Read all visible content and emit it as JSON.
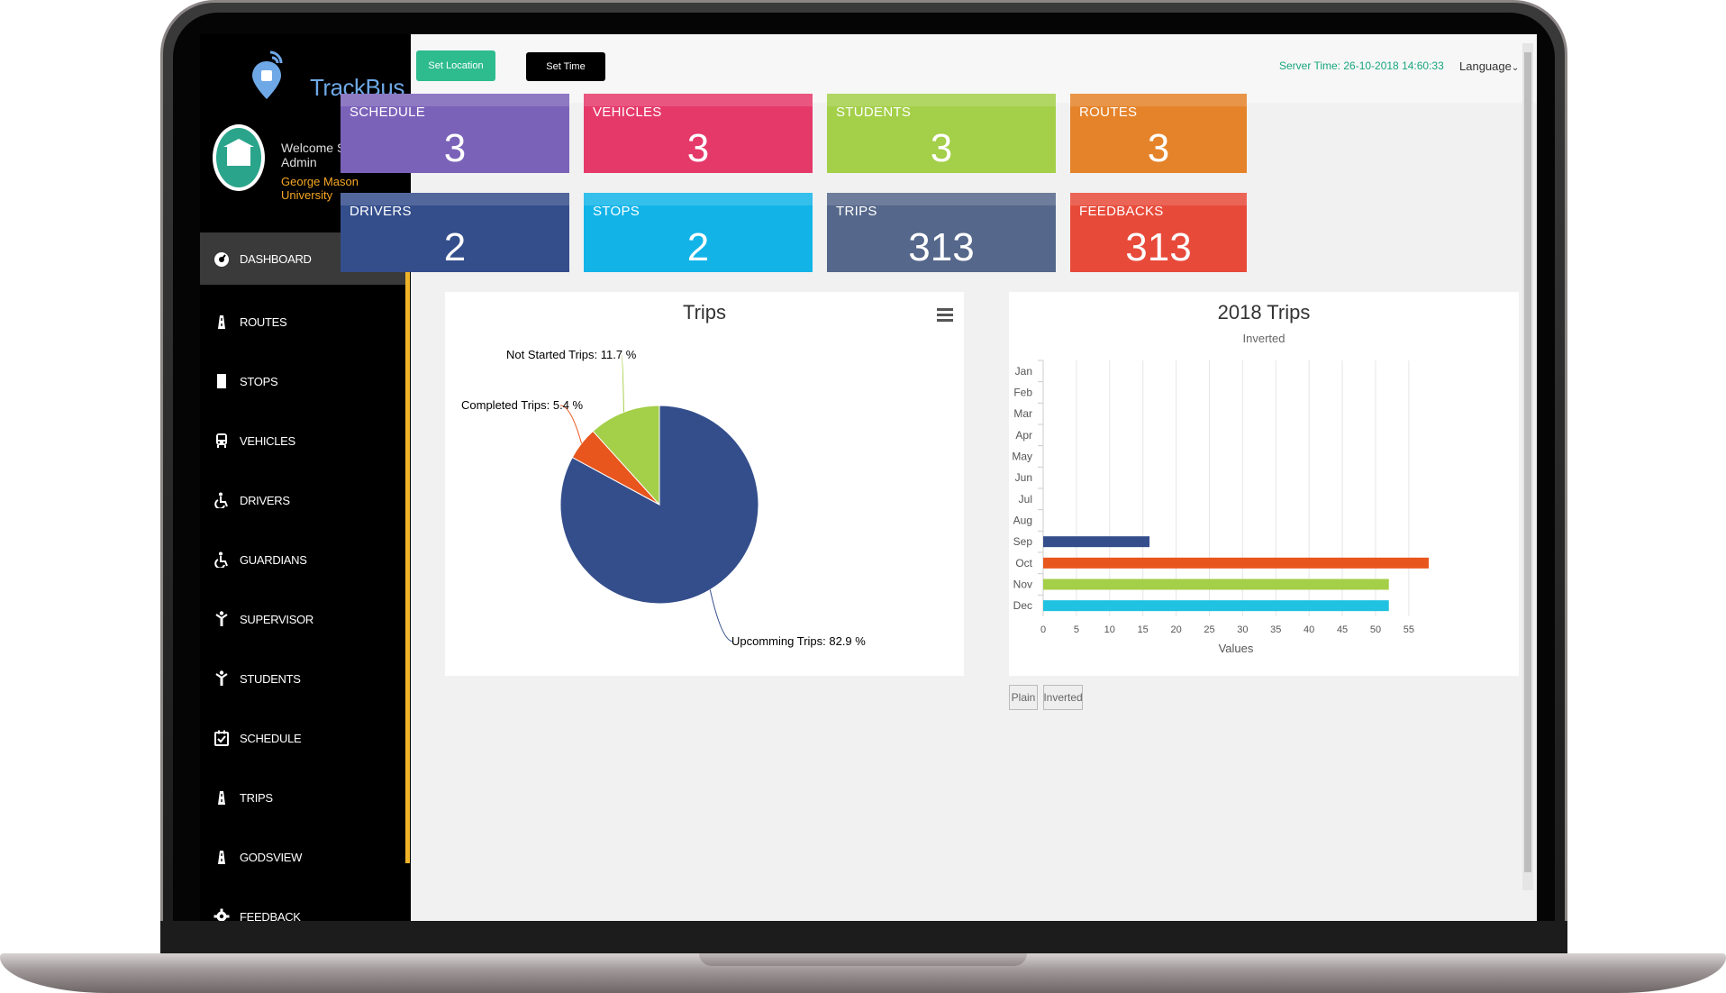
{
  "app": {
    "name": "TrackBus",
    "welcome": "Welcome School Admin",
    "school": "George Mason University"
  },
  "colors": {
    "sidebar": "#000000",
    "accent": "#f0b429",
    "schedule": "#7b62b9",
    "vehicles": "#e5396a",
    "students": "#a4cf49",
    "routes": "#e5832a",
    "drivers": "#344e8c",
    "stops": "#12b4e8",
    "trips": "#55678a",
    "feedbacks": "#e84a3a"
  },
  "nav": [
    {
      "label": "DASHBOARD",
      "icon": "dashboard-icon",
      "active": true
    },
    {
      "label": "ROUTES",
      "icon": "road-icon"
    },
    {
      "label": "STOPS",
      "icon": "stop-icon"
    },
    {
      "label": "VEHICLES",
      "icon": "bus-icon"
    },
    {
      "label": "DRIVERS",
      "icon": "wheelchair-icon"
    },
    {
      "label": "GUARDIANS",
      "icon": "wheelchair-icon"
    },
    {
      "label": "SUPERVISOR",
      "icon": "person-icon"
    },
    {
      "label": "STUDENTS",
      "icon": "person-icon"
    },
    {
      "label": "SCHEDULE",
      "icon": "calendar-check-icon"
    },
    {
      "label": "TRIPS",
      "icon": "road-icon"
    },
    {
      "label": "GODSVIEW",
      "icon": "road-icon"
    },
    {
      "label": "FEEDBACK",
      "icon": "gear-icon"
    }
  ],
  "topbar": {
    "set_location": "Set Location",
    "set_time": "Set Time",
    "server_time": "Server Time: 26-10-2018 14:60:33",
    "language": "Language"
  },
  "cards": [
    {
      "label": "SCHEDULE",
      "value": "3"
    },
    {
      "label": "VEHICLES",
      "value": "3"
    },
    {
      "label": "STUDENTS",
      "value": "3"
    },
    {
      "label": "ROUTES",
      "value": "3"
    },
    {
      "label": "DRIVERS",
      "value": "2"
    },
    {
      "label": "STOPS",
      "value": "2"
    },
    {
      "label": "TRIPS",
      "value": "313"
    },
    {
      "label": "FEEDBACKS",
      "value": "313"
    }
  ],
  "chart_data": [
    {
      "type": "pie",
      "title": "Trips",
      "slices": [
        {
          "name": "Upcomming Trips",
          "value": 82.9,
          "color": "#344e8c",
          "label": "Upcomming Trips: 82.9 %"
        },
        {
          "name": "Completed Trips",
          "value": 5.4,
          "color": "#e8561d",
          "label": "Completed Trips: 5.4 %"
        },
        {
          "name": "Not Started Trips",
          "value": 11.7,
          "color": "#a4cf49",
          "label": "Not Started Trips: 11.7 %"
        }
      ]
    },
    {
      "type": "bar",
      "orientation": "horizontal",
      "title": "2018 Trips",
      "subtitle": "Inverted",
      "xlabel": "Values",
      "categories": [
        "Jan",
        "Feb",
        "Mar",
        "Apr",
        "May",
        "Jun",
        "Jul",
        "Aug",
        "Sep",
        "Oct",
        "Nov",
        "Dec"
      ],
      "values": [
        0,
        0,
        0,
        0,
        0,
        0,
        0,
        0,
        16,
        58,
        52,
        52
      ],
      "bar_colors": [
        "#344e8c",
        "#344e8c",
        "#344e8c",
        "#344e8c",
        "#344e8c",
        "#344e8c",
        "#344e8c",
        "#344e8c",
        "#344e8c",
        "#e8561d",
        "#a4cf49",
        "#1fc2e0"
      ],
      "xticks": [
        "0",
        "5",
        "10",
        "15",
        "20",
        "25",
        "30",
        "35",
        "40",
        "45",
        "50",
        "55"
      ],
      "xlim": [
        0,
        58
      ],
      "grid": true,
      "toggles": [
        "Plain",
        "Inverted"
      ]
    }
  ]
}
